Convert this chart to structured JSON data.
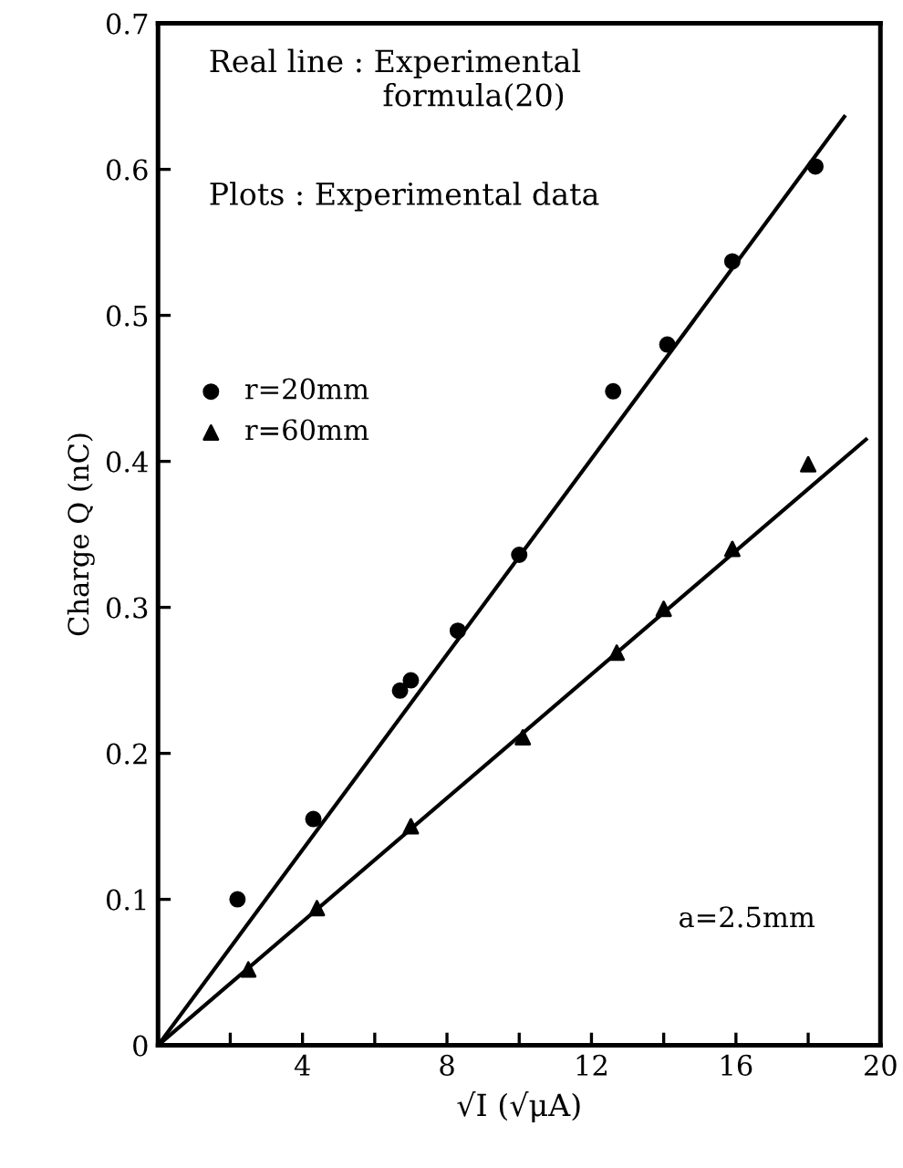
{
  "chart_data": {
    "type": "scatter",
    "xlabel": "√I (√μA)",
    "ylabel": "Charge Q (nC)",
    "annotations": [
      "Real line : Experimental\n                  formula(20)",
      "Plots : Experimental data",
      "a=2.5mm"
    ],
    "series": [
      {
        "name": "r=20mm",
        "marker": "circle",
        "color": "#000000",
        "x": [
          2.2,
          4.3,
          6.7,
          7.0,
          8.3,
          10.0,
          12.6,
          14.1,
          15.9,
          18.2
        ],
        "values": [
          0.1,
          0.155,
          0.243,
          0.25,
          0.284,
          0.336,
          0.448,
          0.48,
          0.537,
          0.602
        ]
      },
      {
        "name": "r=60mm",
        "marker": "triangle",
        "color": "#000000",
        "x": [
          2.5,
          4.4,
          7.0,
          10.1,
          12.7,
          14.0,
          15.9,
          18.0
        ],
        "values": [
          0.052,
          0.094,
          0.15,
          0.211,
          0.269,
          0.299,
          0.34,
          0.398
        ]
      },
      {
        "type": "line",
        "color": "#000000",
        "line_style": "solid",
        "x": [
          0,
          19.0
        ],
        "values": [
          0,
          0.636
        ]
      },
      {
        "type": "line",
        "color": "#000000",
        "line_style": "solid",
        "x": [
          0,
          19.6
        ],
        "values": [
          0,
          0.415
        ]
      }
    ],
    "xlim": [
      0,
      20
    ],
    "ylim": [
      0,
      0.7
    ],
    "xticks": [
      {
        "value": 0,
        "label": null
      },
      {
        "value": 2,
        "label": null
      },
      4,
      {
        "value": 6,
        "label": null
      },
      8,
      {
        "value": 10,
        "label": null
      },
      12,
      {
        "value": 14,
        "label": null
      },
      16,
      {
        "value": 18,
        "label": null
      },
      20
    ],
    "yticks": [
      0,
      0.1,
      0.2,
      0.3,
      0.4,
      0.5,
      0.6,
      0.7
    ],
    "grid": false,
    "legend": "left"
  }
}
